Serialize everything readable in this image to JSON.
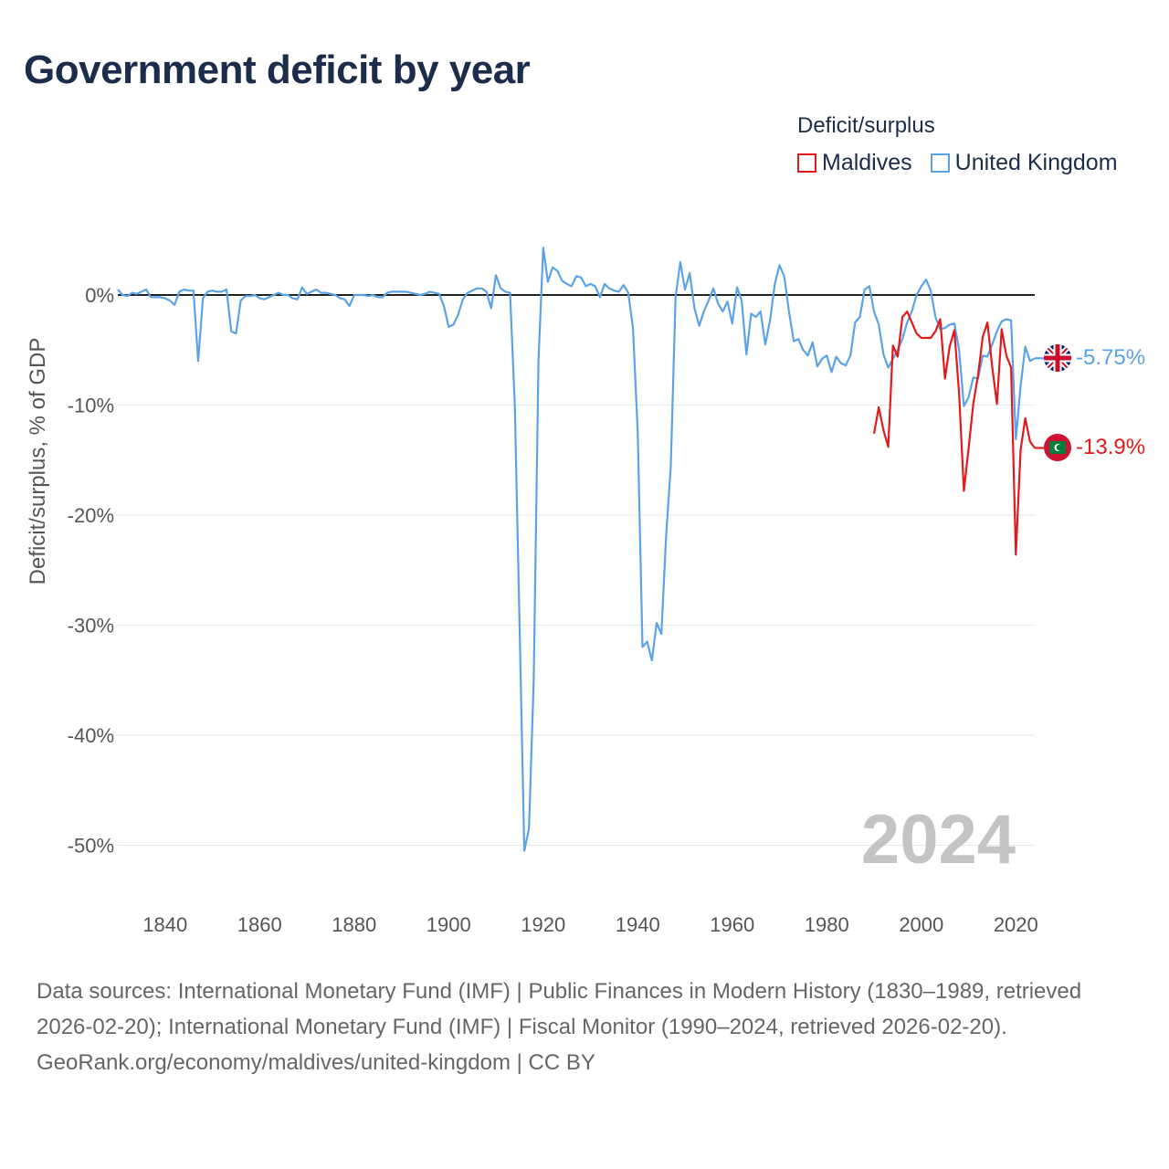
{
  "title": "Government deficit by year",
  "legend": {
    "title": "Deficit/surplus",
    "items": [
      {
        "label": "Maldives",
        "color": "#e31a1c"
      },
      {
        "label": "United Kingdom",
        "color": "#5ba3e6"
      }
    ]
  },
  "current_year": "2024",
  "end_labels": {
    "uk": "-5.75%",
    "maldives": "-13.9%"
  },
  "footer": {
    "sources": "Data sources: International Monetary Fund (IMF) | Public Finances in Modern History (1830–1989, retrieved 2026-02-20); International Monetary Fund (IMF) | Fiscal Monitor (1990–2024, retrieved 2026-02-20).",
    "credit": "GeoRank.org/economy/maldives/united-kingdom | CC BY"
  },
  "chart_data": {
    "type": "line",
    "title": "Government deficit by year",
    "xlabel": "",
    "ylabel": "Deficit/surplus, % of GDP",
    "xlim": [
      1830,
      2024
    ],
    "ylim": [
      -55,
      5
    ],
    "xticks": [
      1840,
      1860,
      1880,
      1900,
      1920,
      1940,
      1960,
      1980,
      2000,
      2020
    ],
    "yticks": [
      0,
      -10,
      -20,
      -30,
      -40,
      -50
    ],
    "ytick_labels": [
      "0%",
      "-10%",
      "-20%",
      "-30%",
      "-40%",
      "-50%"
    ],
    "grid": true,
    "series": [
      {
        "name": "United Kingdom",
        "color": "#5ba3e6",
        "points": [
          [
            1830,
            0.5
          ],
          [
            1831,
            0.0
          ],
          [
            1832,
            -0.1
          ],
          [
            1833,
            0.2
          ],
          [
            1834,
            0.1
          ],
          [
            1835,
            0.3
          ],
          [
            1836,
            0.5
          ],
          [
            1837,
            -0.2
          ],
          [
            1838,
            -0.2
          ],
          [
            1839,
            -0.2
          ],
          [
            1840,
            -0.3
          ],
          [
            1841,
            -0.5
          ],
          [
            1842,
            -0.9
          ],
          [
            1843,
            0.3
          ],
          [
            1844,
            0.5
          ],
          [
            1845,
            0.4
          ],
          [
            1846,
            0.4
          ],
          [
            1847,
            -6.0
          ],
          [
            1848,
            -0.3
          ],
          [
            1849,
            0.3
          ],
          [
            1850,
            0.4
          ],
          [
            1851,
            0.3
          ],
          [
            1852,
            0.3
          ],
          [
            1853,
            0.5
          ],
          [
            1854,
            -3.3
          ],
          [
            1855,
            -3.5
          ],
          [
            1856,
            -0.5
          ],
          [
            1857,
            -0.1
          ],
          [
            1858,
            -0.1
          ],
          [
            1859,
            0.0
          ],
          [
            1860,
            -0.3
          ],
          [
            1861,
            -0.4
          ],
          [
            1862,
            -0.2
          ],
          [
            1863,
            0.0
          ],
          [
            1864,
            0.2
          ],
          [
            1865,
            0.0
          ],
          [
            1866,
            0.0
          ],
          [
            1867,
            -0.3
          ],
          [
            1868,
            -0.4
          ],
          [
            1869,
            0.7
          ],
          [
            1870,
            0.1
          ],
          [
            1871,
            0.3
          ],
          [
            1872,
            0.5
          ],
          [
            1873,
            0.2
          ],
          [
            1874,
            0.2
          ],
          [
            1875,
            0.1
          ],
          [
            1876,
            0.0
          ],
          [
            1877,
            -0.3
          ],
          [
            1878,
            -0.4
          ],
          [
            1879,
            -1.0
          ],
          [
            1880,
            0.0
          ],
          [
            1881,
            0.0
          ],
          [
            1882,
            0.0
          ],
          [
            1883,
            -0.1
          ],
          [
            1884,
            0.0
          ],
          [
            1885,
            -0.2
          ],
          [
            1886,
            -0.2
          ],
          [
            1887,
            0.2
          ],
          [
            1888,
            0.3
          ],
          [
            1889,
            0.3
          ],
          [
            1890,
            0.3
          ],
          [
            1891,
            0.3
          ],
          [
            1892,
            0.2
          ],
          [
            1893,
            0.1
          ],
          [
            1894,
            0.0
          ],
          [
            1895,
            0.1
          ],
          [
            1896,
            0.3
          ],
          [
            1897,
            0.2
          ],
          [
            1898,
            0.1
          ],
          [
            1899,
            -1.0
          ],
          [
            1900,
            -2.9
          ],
          [
            1901,
            -2.7
          ],
          [
            1902,
            -1.8
          ],
          [
            1903,
            -0.4
          ],
          [
            1904,
            0.2
          ],
          [
            1905,
            0.4
          ],
          [
            1906,
            0.6
          ],
          [
            1907,
            0.6
          ],
          [
            1908,
            0.3
          ],
          [
            1909,
            -1.2
          ],
          [
            1910,
            1.8
          ],
          [
            1911,
            0.6
          ],
          [
            1912,
            0.3
          ],
          [
            1913,
            0.2
          ],
          [
            1914,
            -10.0
          ],
          [
            1915,
            -30.0
          ],
          [
            1916,
            -50.5
          ],
          [
            1917,
            -48.5
          ],
          [
            1918,
            -35.0
          ],
          [
            1919,
            -6.0
          ],
          [
            1920,
            4.3
          ],
          [
            1921,
            1.2
          ],
          [
            1922,
            2.5
          ],
          [
            1923,
            2.2
          ],
          [
            1924,
            1.3
          ],
          [
            1925,
            1.0
          ],
          [
            1926,
            0.8
          ],
          [
            1927,
            1.7
          ],
          [
            1928,
            1.6
          ],
          [
            1929,
            0.8
          ],
          [
            1930,
            1.0
          ],
          [
            1931,
            0.8
          ],
          [
            1932,
            -0.2
          ],
          [
            1933,
            1.0
          ],
          [
            1934,
            0.6
          ],
          [
            1935,
            0.4
          ],
          [
            1936,
            0.3
          ],
          [
            1937,
            0.9
          ],
          [
            1938,
            0.2
          ],
          [
            1939,
            -3.0
          ],
          [
            1940,
            -12.5
          ],
          [
            1941,
            -32.0
          ],
          [
            1942,
            -31.5
          ],
          [
            1943,
            -33.2
          ],
          [
            1944,
            -29.8
          ],
          [
            1945,
            -30.8
          ],
          [
            1946,
            -22.0
          ],
          [
            1947,
            -15.5
          ],
          [
            1948,
            -0.2
          ],
          [
            1949,
            3.0
          ],
          [
            1950,
            0.5
          ],
          [
            1951,
            2.0
          ],
          [
            1952,
            -1.2
          ],
          [
            1953,
            -2.8
          ],
          [
            1954,
            -1.5
          ],
          [
            1955,
            -0.5
          ],
          [
            1956,
            0.6
          ],
          [
            1957,
            -0.8
          ],
          [
            1958,
            -1.5
          ],
          [
            1959,
            -0.6
          ],
          [
            1960,
            -2.6
          ],
          [
            1961,
            0.7
          ],
          [
            1962,
            -0.5
          ],
          [
            1963,
            -5.4
          ],
          [
            1964,
            -1.7
          ],
          [
            1965,
            -2.0
          ],
          [
            1966,
            -1.5
          ],
          [
            1967,
            -4.5
          ],
          [
            1968,
            -2.3
          ],
          [
            1969,
            1.0
          ],
          [
            1970,
            2.7
          ],
          [
            1971,
            1.7
          ],
          [
            1972,
            -1.5
          ],
          [
            1973,
            -4.2
          ],
          [
            1974,
            -4.0
          ],
          [
            1975,
            -5.0
          ],
          [
            1976,
            -5.5
          ],
          [
            1977,
            -4.3
          ],
          [
            1978,
            -6.5
          ],
          [
            1979,
            -5.8
          ],
          [
            1980,
            -5.5
          ],
          [
            1981,
            -7.0
          ],
          [
            1982,
            -5.6
          ],
          [
            1983,
            -6.2
          ],
          [
            1984,
            -6.4
          ],
          [
            1985,
            -5.5
          ],
          [
            1986,
            -2.5
          ],
          [
            1987,
            -2.0
          ],
          [
            1988,
            0.5
          ],
          [
            1989,
            0.8
          ],
          [
            1990,
            -1.5
          ],
          [
            1991,
            -2.7
          ],
          [
            1992,
            -5.4
          ],
          [
            1993,
            -6.6
          ],
          [
            1994,
            -5.8
          ],
          [
            1995,
            -5.0
          ],
          [
            1996,
            -4.0
          ],
          [
            1997,
            -2.5
          ],
          [
            1998,
            -1.5
          ],
          [
            1999,
            0.0
          ],
          [
            2000,
            0.8
          ],
          [
            2001,
            1.4
          ],
          [
            2002,
            0.4
          ],
          [
            2003,
            -2.0
          ],
          [
            2004,
            -3.1
          ],
          [
            2005,
            -3.0
          ],
          [
            2006,
            -2.7
          ],
          [
            2007,
            -2.6
          ],
          [
            2008,
            -5.0
          ],
          [
            2009,
            -10.1
          ],
          [
            2010,
            -9.3
          ],
          [
            2011,
            -7.5
          ],
          [
            2012,
            -7.6
          ],
          [
            2013,
            -5.5
          ],
          [
            2014,
            -5.6
          ],
          [
            2015,
            -4.5
          ],
          [
            2016,
            -3.3
          ],
          [
            2017,
            -2.4
          ],
          [
            2018,
            -2.2
          ],
          [
            2019,
            -2.3
          ],
          [
            2020,
            -13.1
          ],
          [
            2021,
            -8.3
          ],
          [
            2022,
            -4.7
          ],
          [
            2023,
            -6.0
          ],
          [
            2024,
            -5.75
          ]
        ]
      },
      {
        "name": "Maldives",
        "color": "#e31a1c",
        "points": [
          [
            1990,
            -12.6
          ],
          [
            1991,
            -10.2
          ],
          [
            1992,
            -12.3
          ],
          [
            1993,
            -13.8
          ],
          [
            1994,
            -4.6
          ],
          [
            1995,
            -5.6
          ],
          [
            1996,
            -2.0
          ],
          [
            1997,
            -1.5
          ],
          [
            1998,
            -2.5
          ],
          [
            1999,
            -3.5
          ],
          [
            2000,
            -3.9
          ],
          [
            2001,
            -3.9
          ],
          [
            2002,
            -3.9
          ],
          [
            2003,
            -3.3
          ],
          [
            2004,
            -2.2
          ],
          [
            2005,
            -7.6
          ],
          [
            2006,
            -4.7
          ],
          [
            2007,
            -3.2
          ],
          [
            2008,
            -9.0
          ],
          [
            2009,
            -17.8
          ],
          [
            2010,
            -14.0
          ],
          [
            2011,
            -9.9
          ],
          [
            2012,
            -7.3
          ],
          [
            2013,
            -3.8
          ],
          [
            2014,
            -2.5
          ],
          [
            2015,
            -6.5
          ],
          [
            2016,
            -9.9
          ],
          [
            2017,
            -3.1
          ],
          [
            2018,
            -5.5
          ],
          [
            2019,
            -6.6
          ],
          [
            2020,
            -23.6
          ],
          [
            2021,
            -14.1
          ],
          [
            2022,
            -11.2
          ],
          [
            2023,
            -13.3
          ],
          [
            2024,
            -13.9
          ]
        ]
      }
    ]
  }
}
